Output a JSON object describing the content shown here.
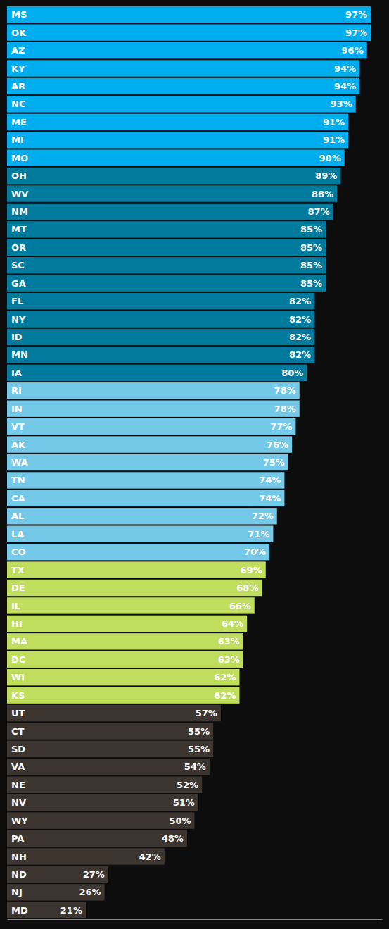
{
  "chart_data": {
    "type": "bar",
    "orientation": "horizontal",
    "categories": [
      "MS",
      "OK",
      "AZ",
      "KY",
      "AR",
      "NC",
      "ME",
      "MI",
      "MO",
      "OH",
      "WV",
      "NM",
      "MT",
      "OR",
      "SC",
      "GA",
      "FL",
      "NY",
      "ID",
      "MN",
      "IA",
      "RI",
      "IN",
      "VT",
      "AK",
      "WA",
      "TN",
      "CA",
      "AL",
      "LA",
      "CO",
      "TX",
      "DE",
      "IL",
      "HI",
      "MA",
      "DC",
      "WI",
      "KS",
      "UT",
      "CT",
      "SD",
      "VA",
      "NE",
      "NV",
      "WY",
      "PA",
      "NH",
      "ND",
      "NJ",
      "MD"
    ],
    "values": [
      97,
      97,
      96,
      94,
      94,
      93,
      91,
      91,
      90,
      89,
      88,
      87,
      85,
      85,
      85,
      85,
      82,
      82,
      82,
      82,
      80,
      78,
      78,
      77,
      76,
      75,
      74,
      74,
      72,
      71,
      70,
      69,
      68,
      66,
      64,
      63,
      63,
      62,
      62,
      57,
      55,
      55,
      54,
      52,
      51,
      50,
      48,
      42,
      27,
      26,
      21
    ],
    "value_labels": [
      "97%",
      "97%",
      "96%",
      "94%",
      "94%",
      "93%",
      "91%",
      "91%",
      "90%",
      "89%",
      "88%",
      "87%",
      "85%",
      "85%",
      "85%",
      "85%",
      "82%",
      "82%",
      "82%",
      "82%",
      "80%",
      "78%",
      "78%",
      "77%",
      "76%",
      "75%",
      "74%",
      "74%",
      "72%",
      "71%",
      "70%",
      "69%",
      "68%",
      "66%",
      "64%",
      "63%",
      "63%",
      "62%",
      "62%",
      "57%",
      "55%",
      "55%",
      "54%",
      "52%",
      "51%",
      "50%",
      "48%",
      "42%",
      "27%",
      "26%",
      "21%"
    ],
    "colors": [
      "#00AEEF",
      "#00AEEF",
      "#00AEEF",
      "#00AEEF",
      "#00AEEF",
      "#00AEEF",
      "#00AEEF",
      "#00AEEF",
      "#00AEEF",
      "#007B9E",
      "#007B9E",
      "#007B9E",
      "#007B9E",
      "#007B9E",
      "#007B9E",
      "#007B9E",
      "#007B9E",
      "#007B9E",
      "#007B9E",
      "#007B9E",
      "#007B9E",
      "#74C8E8",
      "#74C8E8",
      "#74C8E8",
      "#74C8E8",
      "#74C8E8",
      "#74C8E8",
      "#74C8E8",
      "#74C8E8",
      "#74C8E8",
      "#74C8E8",
      "#BFDE5D",
      "#BFDE5D",
      "#BFDE5D",
      "#BFDE5D",
      "#BFDE5D",
      "#BFDE5D",
      "#BFDE5D",
      "#BFDE5D",
      "#3D3530",
      "#3D3530",
      "#3D3530",
      "#3D3530",
      "#3D3530",
      "#3D3530",
      "#3D3530",
      "#3D3530",
      "#3D3530",
      "#3D3530",
      "#3D3530",
      "#3D3530"
    ],
    "xlim": [
      0,
      100
    ],
    "tick_labels": false,
    "data_labels": true
  }
}
